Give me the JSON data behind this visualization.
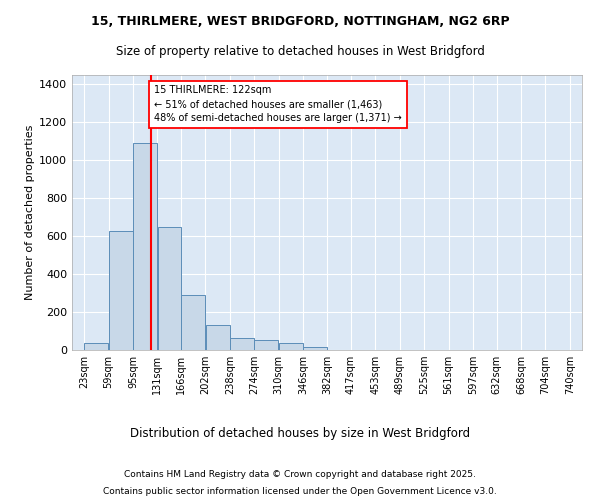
{
  "title1": "15, THIRLMERE, WEST BRIDGFORD, NOTTINGHAM, NG2 6RP",
  "title2": "Size of property relative to detached houses in West Bridgford",
  "xlabel": "Distribution of detached houses by size in West Bridgford",
  "ylabel": "Number of detached properties",
  "bar_color": "#c8d8e8",
  "bar_edge_color": "#5b8db8",
  "bg_color": "#dce8f5",
  "grid_color": "white",
  "annotation_line_color": "red",
  "annotation_text": "15 THIRLMERE: 122sqm\n← 51% of detached houses are smaller (1,463)\n48% of semi-detached houses are larger (1,371) →",
  "property_sqm": 122,
  "bins": [
    23,
    59,
    95,
    131,
    166,
    202,
    238,
    274,
    310,
    346,
    382,
    417,
    453,
    489,
    525,
    561,
    597,
    632,
    668,
    704,
    740
  ],
  "bin_labels": [
    "23sqm",
    "59sqm",
    "95sqm",
    "131sqm",
    "166sqm",
    "202sqm",
    "238sqm",
    "274sqm",
    "310sqm",
    "346sqm",
    "382sqm",
    "417sqm",
    "453sqm",
    "489sqm",
    "525sqm",
    "561sqm",
    "597sqm",
    "632sqm",
    "668sqm",
    "704sqm",
    "740sqm"
  ],
  "bar_heights": [
    35,
    630,
    1090,
    650,
    290,
    130,
    65,
    55,
    35,
    18,
    0,
    0,
    0,
    0,
    0,
    0,
    0,
    0,
    0,
    0
  ],
  "ylim": [
    0,
    1450
  ],
  "yticks": [
    0,
    200,
    400,
    600,
    800,
    1000,
    1200,
    1400
  ],
  "footnote1": "Contains HM Land Registry data © Crown copyright and database right 2025.",
  "footnote2": "Contains public sector information licensed under the Open Government Licence v3.0."
}
